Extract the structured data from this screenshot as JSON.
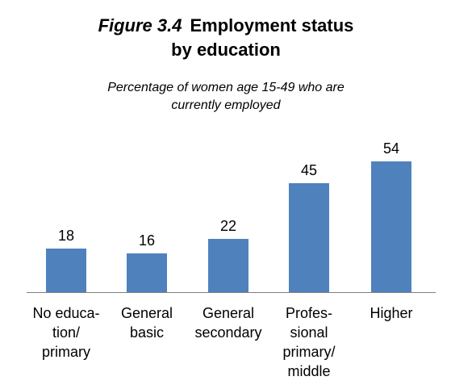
{
  "header": {
    "figure_label": "Figure 3.4",
    "title_line1": "Employment status",
    "title_line2": "by education",
    "subtitle_line1": "Percentage of women age 15-49 who are",
    "subtitle_line2": "currently employed"
  },
  "chart_data": {
    "type": "bar",
    "title": "Figure 3.4 Employment status by education",
    "subtitle": "Percentage of women age 15-49 who are currently employed",
    "categories": [
      "No educa-\ntion/\nprimary",
      "General\nbasic",
      "General\nsecondary",
      "Profes-\nsional\nprimary/\nmiddle",
      "Higher"
    ],
    "values": [
      18,
      16,
      22,
      45,
      54
    ],
    "data_labels": [
      "18",
      "16",
      "22",
      "45",
      "54"
    ],
    "ylim": [
      0,
      60
    ],
    "xlabel": "",
    "ylabel": "",
    "grid": false,
    "legend": "none",
    "bar_color": "#4f81bd",
    "axis_color": "#808080"
  }
}
